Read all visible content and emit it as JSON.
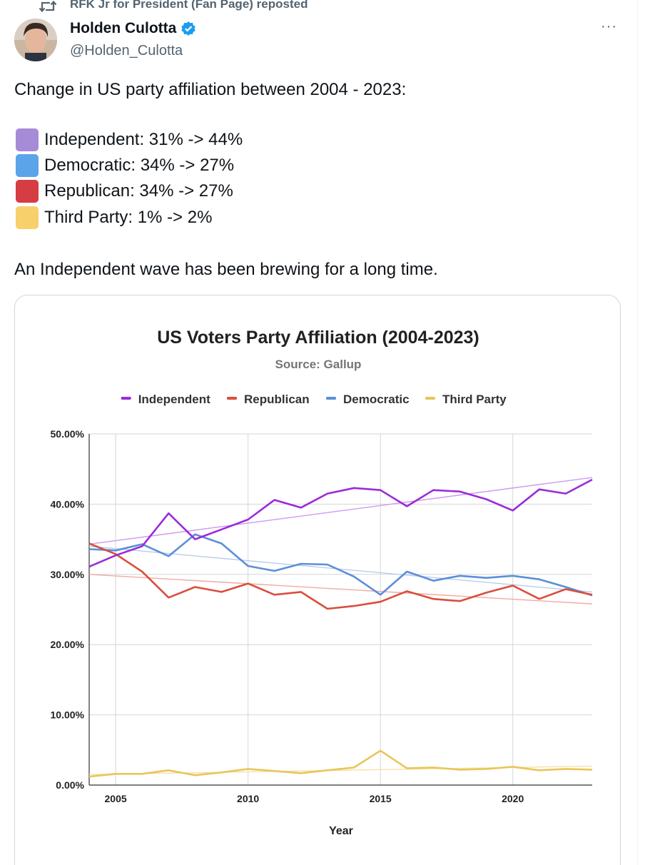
{
  "repost": {
    "icon": "repost-icon",
    "text": "RFK Jr for President (Fan Page) reposted"
  },
  "author": {
    "name": "Holden Culotta",
    "handle": "@Holden_Culotta",
    "verified_icon": "verified-badge-icon"
  },
  "more_label": "···",
  "tweet": {
    "line1": "Change in US party affiliation between 2004 - 2023:",
    "bullets": [
      {
        "color": "#a68bd6",
        "text": "Independent: 31% -> 44%"
      },
      {
        "color": "#5ba4ea",
        "text": "Democratic: 34% -> 27%"
      },
      {
        "color": "#d63c44",
        "text": "Republican: 34% -> 27%"
      },
      {
        "color": "#f7d06c",
        "text": "Third Party: 1% -> 2%"
      }
    ],
    "line2": "An Independent wave has been brewing for a long time."
  },
  "chart_data": {
    "type": "line",
    "title": "US Voters Party Affiliation (2004-2023)",
    "subtitle": "Source: Gallup",
    "xlabel": "Year",
    "ylabel": "",
    "x": [
      2004,
      2005,
      2006,
      2007,
      2008,
      2009,
      2010,
      2011,
      2012,
      2013,
      2014,
      2015,
      2016,
      2017,
      2018,
      2019,
      2020,
      2021,
      2022,
      2023
    ],
    "xlim": [
      2004,
      2023
    ],
    "ylim": [
      0,
      50
    ],
    "x_ticks": [
      "2005",
      "2010",
      "2015",
      "2020"
    ],
    "y_ticks": [
      "0.00%",
      "10.00%",
      "20.00%",
      "30.00%",
      "40.00%",
      "50.00%"
    ],
    "legend_position": "top-center",
    "grid": true,
    "series": [
      {
        "name": "Independent",
        "color": "#9b2bd8",
        "trend_color": "#cf9af0",
        "values": [
          31.1,
          32.7,
          34.0,
          38.7,
          35.0,
          36.4,
          37.8,
          40.6,
          39.5,
          41.5,
          42.3,
          42.0,
          39.7,
          42.0,
          41.8,
          40.7,
          39.1,
          42.1,
          41.5,
          43.5
        ],
        "trend": [
          34.3,
          43.8
        ]
      },
      {
        "name": "Republican",
        "color": "#d94e3d",
        "trend_color": "#f0aaa3",
        "values": [
          34.4,
          32.9,
          30.4,
          26.7,
          28.2,
          27.5,
          28.7,
          27.1,
          27.5,
          25.1,
          25.5,
          26.1,
          27.6,
          26.5,
          26.2,
          27.4,
          28.4,
          26.5,
          27.9,
          27.1
        ],
        "trend": [
          30.0,
          25.8
        ]
      },
      {
        "name": "Democratic",
        "color": "#5b8fd8",
        "trend_color": "#b9cdee",
        "values": [
          33.6,
          33.4,
          34.3,
          32.6,
          35.7,
          34.4,
          31.2,
          30.5,
          31.5,
          31.4,
          29.7,
          27.1,
          30.4,
          29.1,
          29.8,
          29.5,
          29.8,
          29.3,
          28.2,
          27.0
        ],
        "trend": [
          34.0,
          27.5
        ]
      },
      {
        "name": "Third Party",
        "color": "#e8c658",
        "trend_color": "#f3e2a8",
        "values": [
          1.2,
          1.6,
          1.6,
          2.1,
          1.4,
          1.8,
          2.3,
          2.0,
          1.7,
          2.1,
          2.5,
          4.9,
          2.4,
          2.5,
          2.2,
          2.3,
          2.6,
          2.1,
          2.3,
          2.2
        ],
        "trend": [
          1.5,
          2.7
        ]
      }
    ]
  }
}
